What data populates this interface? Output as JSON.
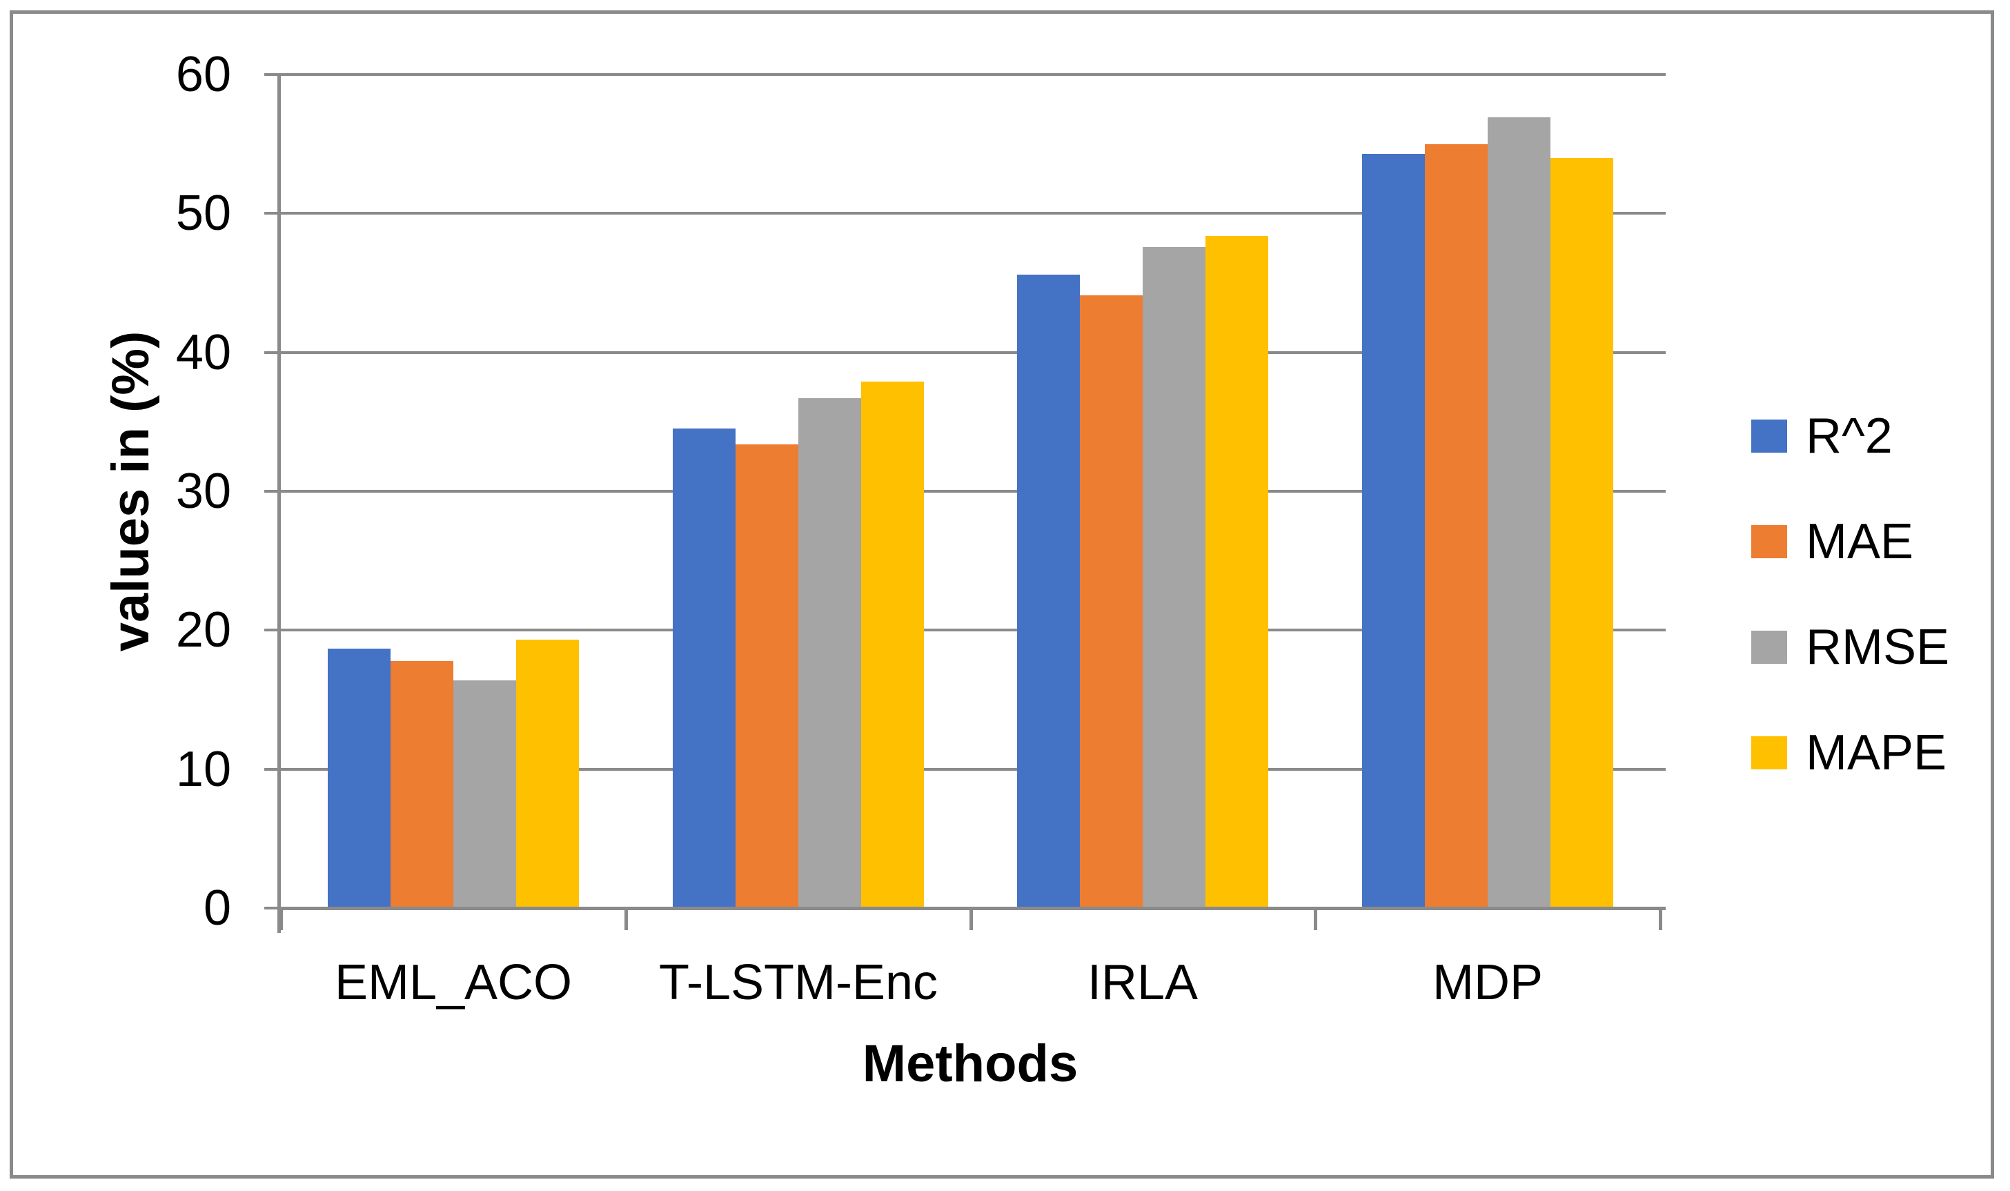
{
  "chart_data": {
    "type": "bar",
    "categories": [
      "EML_ACO",
      "T-LSTM-Enc",
      "IRLA",
      "MDP"
    ],
    "series": [
      {
        "name": "R^2",
        "color": "#4472C4",
        "values": [
          18.7,
          34.5,
          45.6,
          54.3
        ]
      },
      {
        "name": "MAE",
        "color": "#ED7D31",
        "values": [
          17.8,
          33.4,
          44.1,
          55.0
        ]
      },
      {
        "name": "RMSE",
        "color": "#A5A5A5",
        "values": [
          16.4,
          36.7,
          47.6,
          56.9
        ]
      },
      {
        "name": "MAPE",
        "color": "#FFC000",
        "values": [
          19.3,
          37.9,
          48.4,
          54.0
        ]
      }
    ],
    "title": "",
    "xlabel": "Methods",
    "ylabel": "values in (%)",
    "ylim": [
      0,
      60
    ],
    "ytick_step": 10,
    "yticks": [
      "0",
      "10",
      "20",
      "30",
      "40",
      "50",
      "60"
    ],
    "grid": true,
    "legend_position": "right",
    "axis_color": "#8a8a8a",
    "grid_color": "#8a8a8a",
    "text_color": "#000000",
    "background_color": "#ffffff"
  }
}
